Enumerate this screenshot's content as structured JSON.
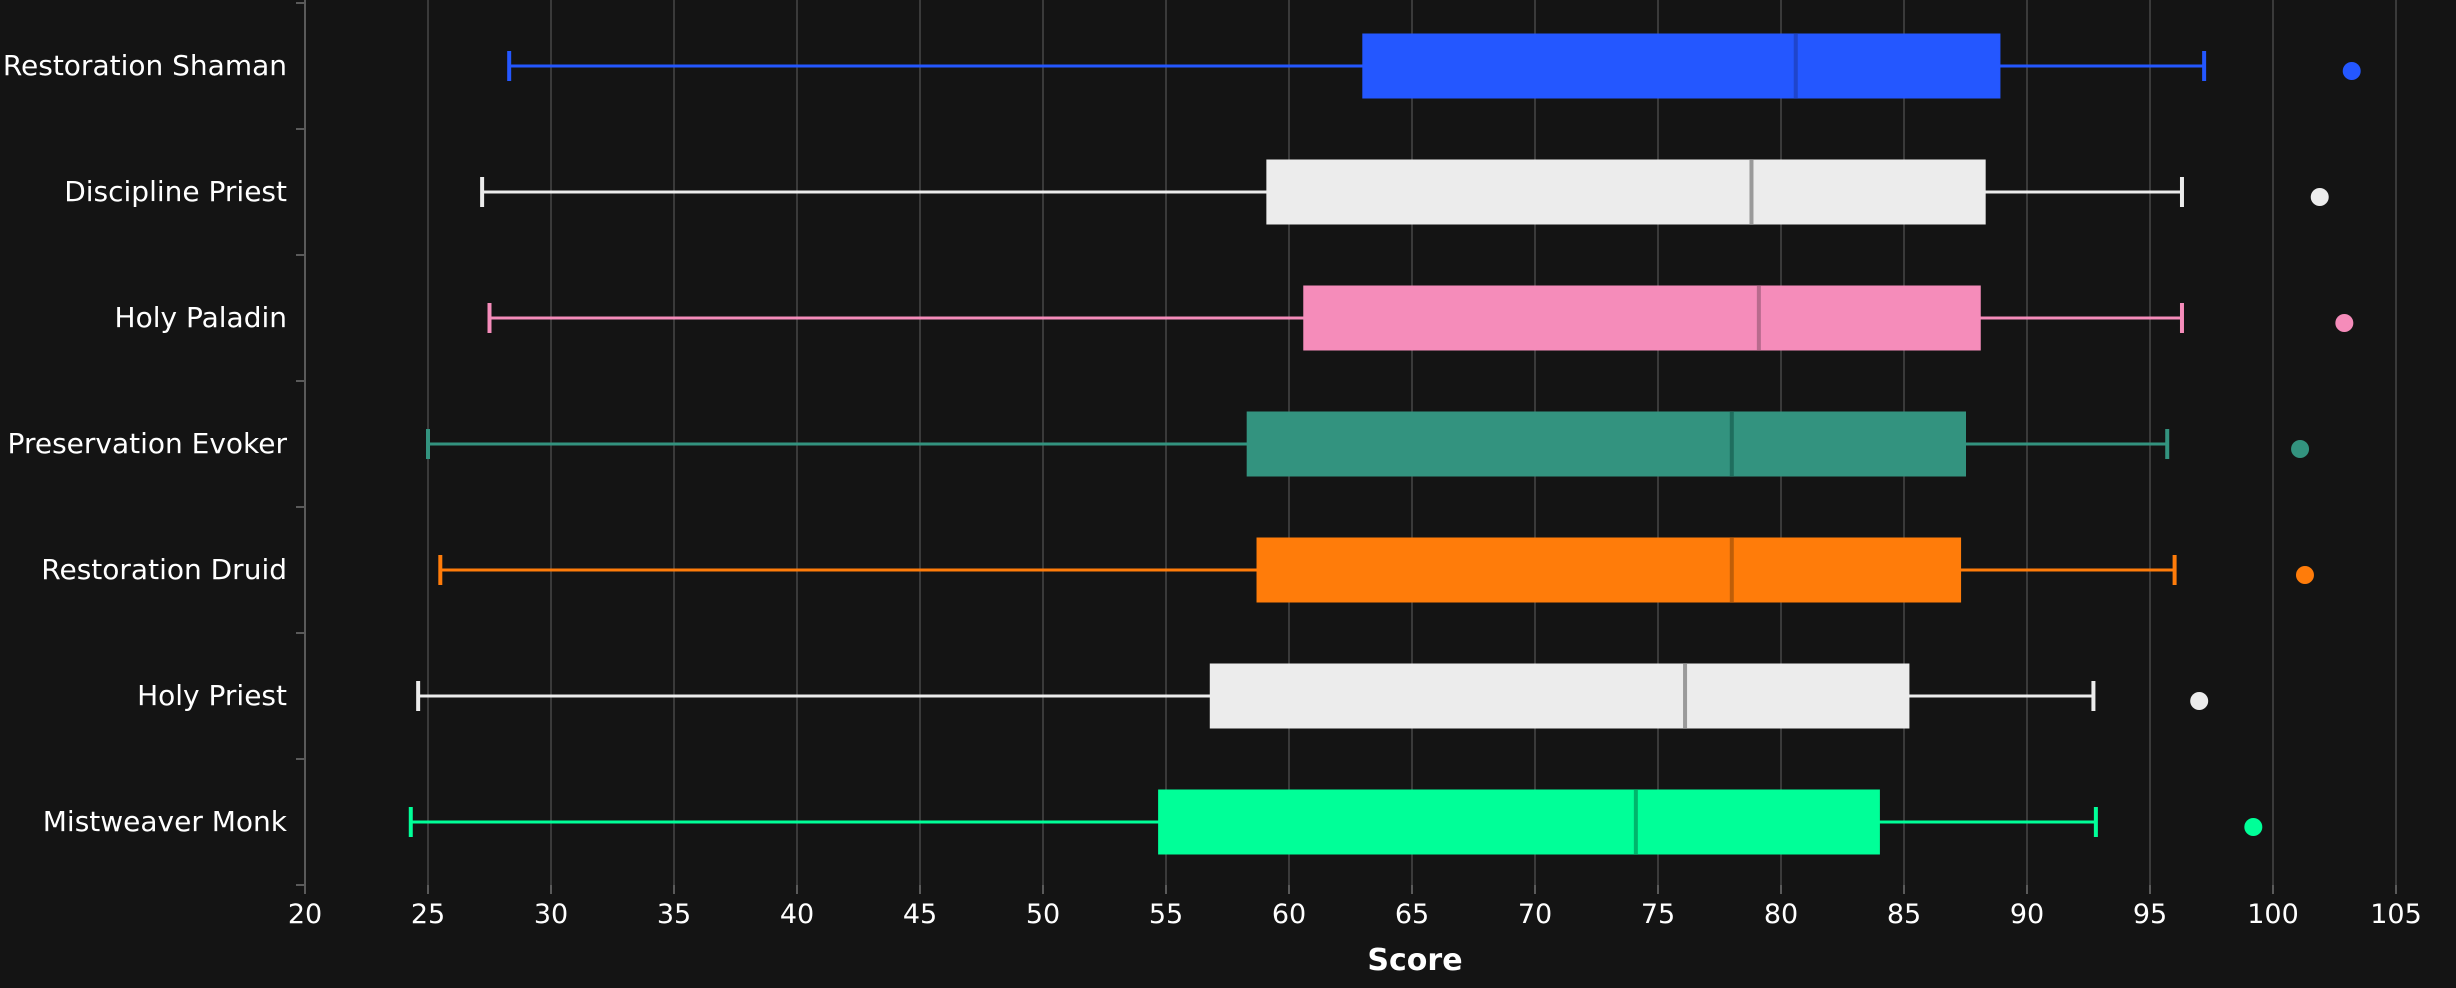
{
  "chart_data": {
    "type": "boxplot",
    "orientation": "horizontal",
    "xlabel": "Score",
    "ylabel": "",
    "xlim": [
      20,
      105
    ],
    "xticks": [
      20,
      25,
      30,
      35,
      40,
      45,
      50,
      55,
      60,
      65,
      70,
      75,
      80,
      85,
      90,
      95,
      100,
      105
    ],
    "grid": true,
    "legend": "none",
    "colors": {
      "background": "#141414",
      "grid": "#3a3a3a",
      "axis": "#5a5a5a",
      "text": "#ffffff"
    },
    "categories": [
      "Restoration Shaman",
      "Discipline Priest",
      "Holy Paladin",
      "Preservation Evoker",
      "Restoration Druid",
      "Holy Priest",
      "Mistweaver Monk"
    ],
    "series": [
      {
        "category": "Restoration Shaman",
        "color": "#2457ff",
        "median_color": "#1f45cc",
        "whisker_low": 28.3,
        "q1": 63.0,
        "median": 80.6,
        "q3": 88.9,
        "whisker_high": 97.2,
        "outliers": [
          103.2
        ]
      },
      {
        "category": "Discipline Priest",
        "color": "#ececec",
        "median_color": "#9a9a9a",
        "whisker_low": 27.2,
        "q1": 59.1,
        "median": 78.8,
        "q3": 88.3,
        "whisker_high": 96.3,
        "outliers": [
          101.9
        ]
      },
      {
        "category": "Holy Paladin",
        "color": "#f58cba",
        "median_color": "#b86b8d",
        "whisker_low": 27.5,
        "q1": 60.6,
        "median": 79.1,
        "q3": 88.1,
        "whisker_high": 96.3,
        "outliers": [
          102.9
        ]
      },
      {
        "category": "Preservation Evoker",
        "color": "#33937f",
        "median_color": "#1f6e5e",
        "whisker_low": 25.0,
        "q1": 58.3,
        "median": 78.0,
        "q3": 87.5,
        "whisker_high": 95.7,
        "outliers": [
          101.1
        ]
      },
      {
        "category": "Restoration Druid",
        "color": "#ff7c0a",
        "median_color": "#bf5e08",
        "whisker_low": 25.5,
        "q1": 58.7,
        "median": 78.0,
        "q3": 87.3,
        "whisker_high": 96.0,
        "outliers": [
          101.3
        ]
      },
      {
        "category": "Holy Priest",
        "color": "#ececec",
        "median_color": "#9a9a9a",
        "whisker_low": 24.6,
        "q1": 56.8,
        "median": 76.1,
        "q3": 85.2,
        "whisker_high": 92.7,
        "outliers": [
          97.0
        ]
      },
      {
        "category": "Mistweaver Monk",
        "color": "#00ff98",
        "median_color": "#00b56c",
        "whisker_low": 24.3,
        "q1": 54.7,
        "median": 74.1,
        "q3": 84.0,
        "whisker_high": 92.8,
        "outliers": [
          99.2
        ]
      }
    ]
  }
}
